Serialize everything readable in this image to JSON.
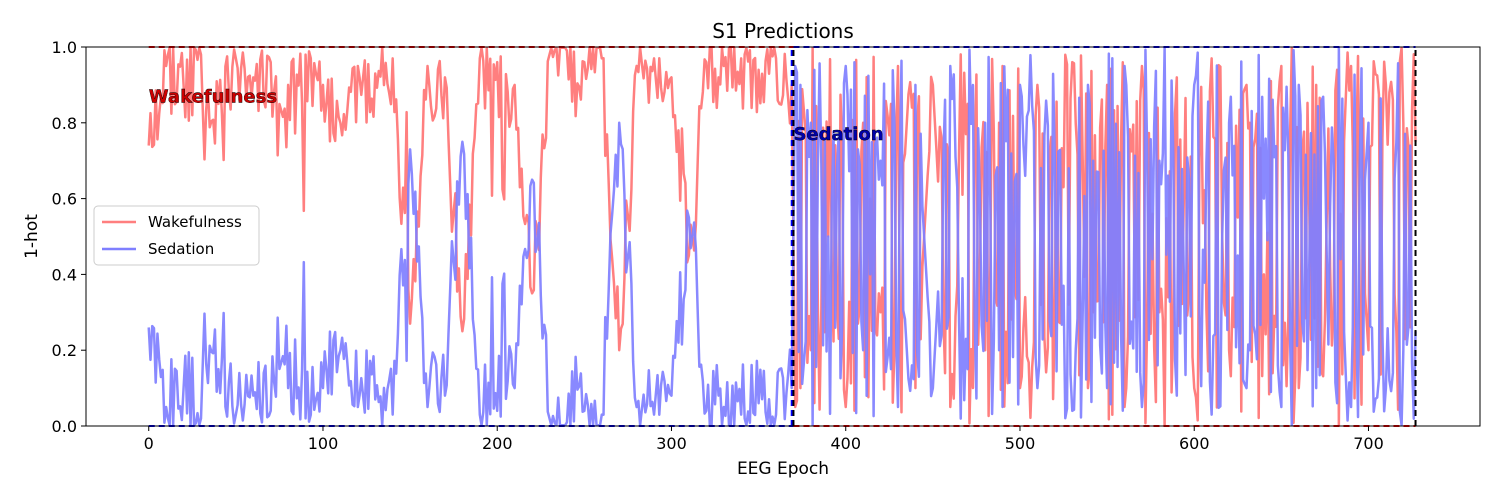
{
  "chart_data": {
    "type": "line",
    "title": "S1 Predictions",
    "xlabel": "EEG Epoch",
    "ylabel": "1-hot",
    "xlim": [
      -36,
      764
    ],
    "ylim": [
      0,
      1
    ],
    "xticks": [
      0,
      100,
      200,
      300,
      400,
      500,
      600,
      700
    ],
    "yticks": [
      0.0,
      0.2,
      0.4,
      0.6,
      0.8,
      1.0
    ],
    "ytick_labels": [
      "0.0",
      "0.2",
      "0.4",
      "0.6",
      "0.8",
      "1.0"
    ],
    "grid": false,
    "legend": {
      "placement": "center-left"
    },
    "n_epochs": 728,
    "transition_epoch": 370,
    "colors": {
      "wakefulness": "#ff7f7f",
      "sedation": "#7f7fff",
      "overlap": "#7f3fbf"
    },
    "series": [
      {
        "name": "Wakefulness",
        "color": "#ff7f7f",
        "sampled_x": [
          0,
          10,
          20,
          30,
          40,
          50,
          60,
          70,
          80,
          90,
          100,
          110,
          120,
          130,
          140,
          150,
          160,
          170,
          180,
          190,
          200,
          210,
          220,
          230,
          240,
          250,
          260,
          270,
          280,
          290,
          300,
          310,
          320,
          330,
          340,
          350,
          360,
          369,
          371,
          380,
          390,
          400,
          410,
          420,
          430,
          440,
          450,
          460,
          470,
          480,
          490,
          500,
          510,
          520,
          530,
          540,
          550,
          560,
          570,
          580,
          590,
          600,
          610,
          620,
          630,
          640,
          650,
          660,
          670,
          680,
          690,
          700,
          710,
          720,
          727
        ],
        "sampled_y": [
          0.74,
          0.95,
          0.9,
          0.98,
          0.85,
          0.97,
          0.92,
          0.96,
          0.9,
          0.98,
          0.9,
          0.8,
          0.95,
          0.93,
          0.97,
          0.27,
          0.95,
          0.92,
          0.25,
          0.97,
          0.96,
          0.9,
          0.35,
          0.98,
          0.99,
          0.96,
          0.97,
          0.2,
          0.95,
          0.97,
          0.92,
          0.45,
          0.96,
          0.95,
          0.97,
          0.94,
          0.97,
          0.9,
          0.05,
          0.2,
          0.5,
          0.05,
          0.8,
          0.3,
          0.95,
          0.1,
          0.9,
          0.05,
          0.85,
          0.2,
          0.95,
          0.1,
          0.9,
          0.3,
          0.96,
          0.15,
          0.9,
          0.05,
          0.95,
          0.3,
          0.92,
          0.1,
          0.97,
          0.2,
          0.9,
          0.4,
          0.95,
          0.1,
          0.9,
          0.3,
          0.95,
          0.2,
          0.9,
          0.8,
          0.75
        ]
      },
      {
        "name": "Sedation",
        "color": "#7f7fff",
        "sampled_x": [
          0,
          10,
          20,
          30,
          40,
          50,
          60,
          70,
          80,
          90,
          100,
          110,
          120,
          130,
          140,
          150,
          160,
          170,
          180,
          190,
          200,
          210,
          220,
          230,
          240,
          250,
          260,
          270,
          280,
          290,
          300,
          310,
          320,
          330,
          340,
          350,
          360,
          369,
          371,
          380,
          390,
          400,
          410,
          420,
          430,
          440,
          450,
          460,
          470,
          480,
          490,
          500,
          510,
          520,
          530,
          540,
          550,
          560,
          570,
          580,
          590,
          600,
          610,
          620,
          630,
          640,
          650,
          660,
          670,
          680,
          690,
          700,
          710,
          720,
          727
        ],
        "sampled_y": [
          0.26,
          0.05,
          0.1,
          0.02,
          0.15,
          0.03,
          0.08,
          0.04,
          0.1,
          0.02,
          0.1,
          0.2,
          0.05,
          0.07,
          0.03,
          0.73,
          0.05,
          0.08,
          0.75,
          0.03,
          0.04,
          0.1,
          0.65,
          0.02,
          0.01,
          0.04,
          0.03,
          0.8,
          0.05,
          0.03,
          0.08,
          0.55,
          0.04,
          0.05,
          0.03,
          0.06,
          0.03,
          0.1,
          0.95,
          0.8,
          0.5,
          0.95,
          0.2,
          0.7,
          0.05,
          0.9,
          0.1,
          0.95,
          0.15,
          0.8,
          0.05,
          0.9,
          0.1,
          0.7,
          0.04,
          0.85,
          0.1,
          0.95,
          0.05,
          0.7,
          0.08,
          0.9,
          0.03,
          0.8,
          0.1,
          0.6,
          0.05,
          0.9,
          0.1,
          0.7,
          0.05,
          0.8,
          0.1,
          0.2,
          0.25
        ]
      }
    ],
    "annotations": [
      {
        "text": "Wakefulness",
        "x": 0,
        "y": 0.87,
        "color": "#cc0000"
      },
      {
        "text": "Sedation",
        "x": 370,
        "y": 0.77,
        "color": "#0000aa"
      }
    ],
    "regions": [
      {
        "label": "Wakefulness",
        "x_start": 0,
        "x_end": 370,
        "color": "#ff0000"
      },
      {
        "label": "Sedation",
        "x_start": 370,
        "x_end": 727,
        "color": "#0000ff"
      }
    ]
  }
}
